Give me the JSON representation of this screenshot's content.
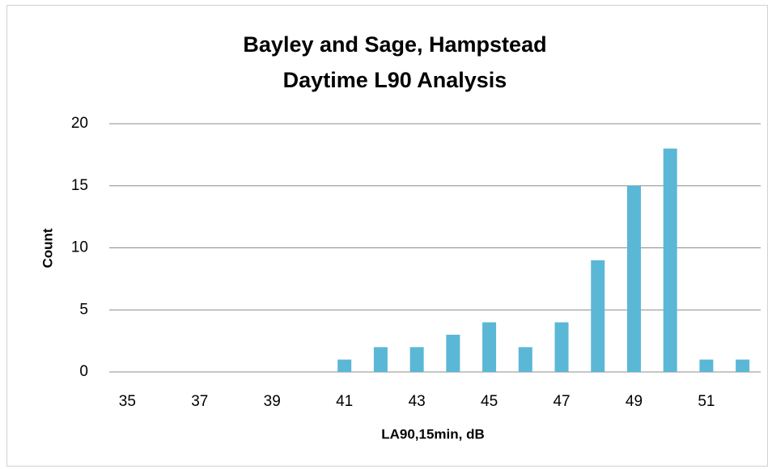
{
  "chart_data": {
    "type": "bar",
    "title": "Bayley and Sage, Hampstead",
    "subtitle": "Daytime L90 Analysis",
    "x_label": "LA90,15min, dB",
    "y_label": "Count",
    "categories": [
      "35",
      null,
      "37",
      null,
      "39",
      null,
      "41",
      null,
      "43",
      null,
      "45",
      null,
      "47",
      null,
      "49",
      null,
      "51",
      null
    ],
    "values": [
      0,
      0,
      0,
      0,
      0,
      0,
      1,
      2,
      2,
      3,
      4,
      2,
      4,
      9,
      15,
      18,
      1,
      1
    ],
    "color": "#5bb7d6",
    "ylim": [
      0,
      20
    ],
    "yticks": [
      0,
      5,
      10,
      15,
      20
    ],
    "grid": true
  }
}
